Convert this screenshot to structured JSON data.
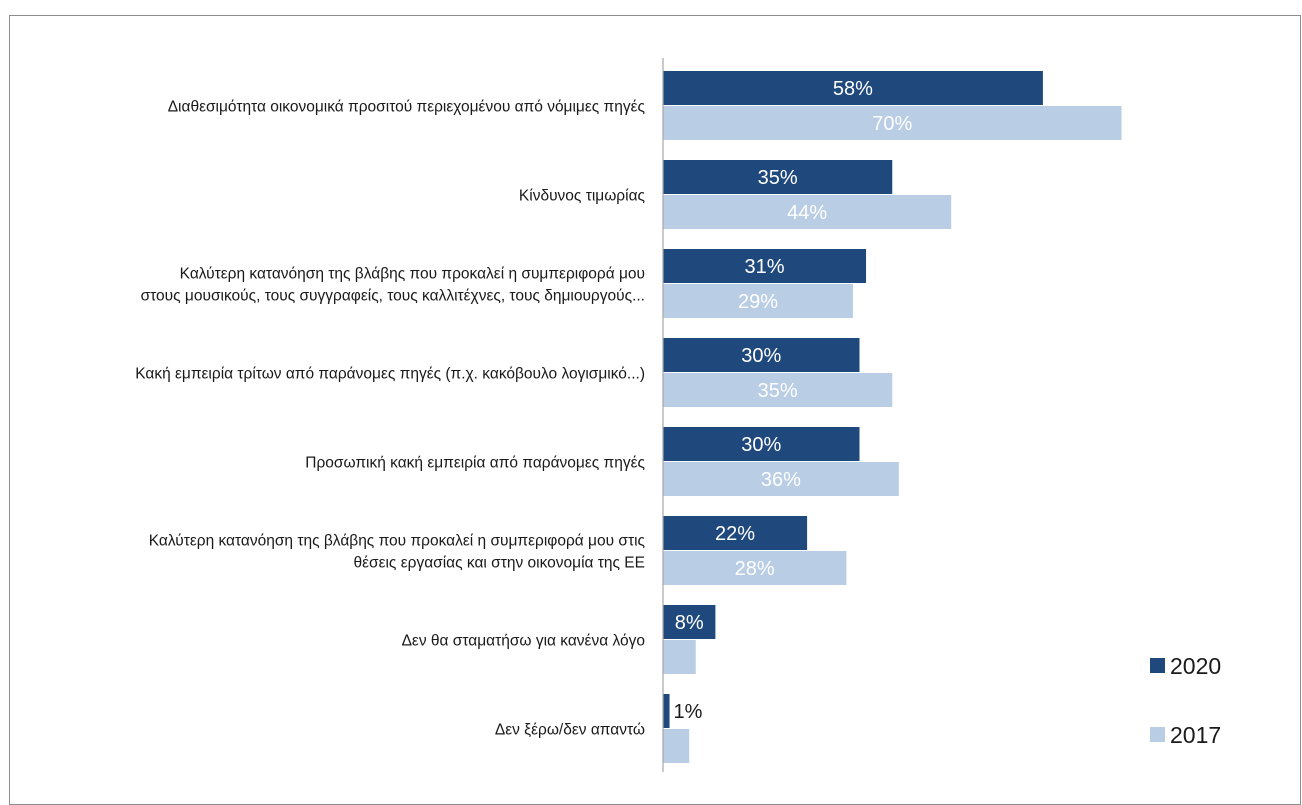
{
  "chart_data": {
    "type": "bar",
    "orientation": "horizontal",
    "categories": [
      [
        "Διαθεσιμότητα οικονομικά προσιτού περιεχομένου από νόμιμες πηγές"
      ],
      [
        "Κίνδυνος τιμωρίας"
      ],
      [
        "Καλύτερη κατανόηση της βλάβης που προκαλεί η συμπεριφορά μου",
        "στους μουσικούς, τους συγγραφείς, τους καλλιτέχνες, τους δημιουργούς..."
      ],
      [
        "Κακή εμπειρία τρίτων από παράνομες πηγές (π.χ. κακόβουλο λογισμικό...)"
      ],
      [
        "Προσωπική κακή εμπειρία από παράνομες πηγές"
      ],
      [
        "Καλύτερη κατανόηση της βλάβης που προκαλεί η συμπεριφορά μου στις",
        "θέσεις εργασίας και στην οικονομία της ΕΕ"
      ],
      [
        "Δεν θα σταματήσω για κανένα λόγο"
      ],
      [
        "Δεν ξέρω/δεν απαντώ"
      ]
    ],
    "series": [
      {
        "name": "2020",
        "color": "#1f497d",
        "values": [
          58,
          35,
          31,
          30,
          30,
          22,
          8,
          1
        ],
        "labels": [
          "58%",
          "35%",
          "31%",
          "30%",
          "30%",
          "22%",
          "8%",
          "1%"
        ]
      },
      {
        "name": "2017",
        "color": "#b9cde5",
        "values": [
          70,
          44,
          29,
          35,
          36,
          28,
          5,
          4
        ],
        "labels": [
          "70%",
          "44%",
          "29%",
          "35%",
          "36%",
          "28%",
          "5%",
          "4%"
        ]
      }
    ],
    "xlim": [
      0,
      100
    ],
    "grid": false,
    "legend_position": "bottom-right",
    "label_color_inside": "#ffffff",
    "label_color_outside": "#1a1a1a"
  }
}
